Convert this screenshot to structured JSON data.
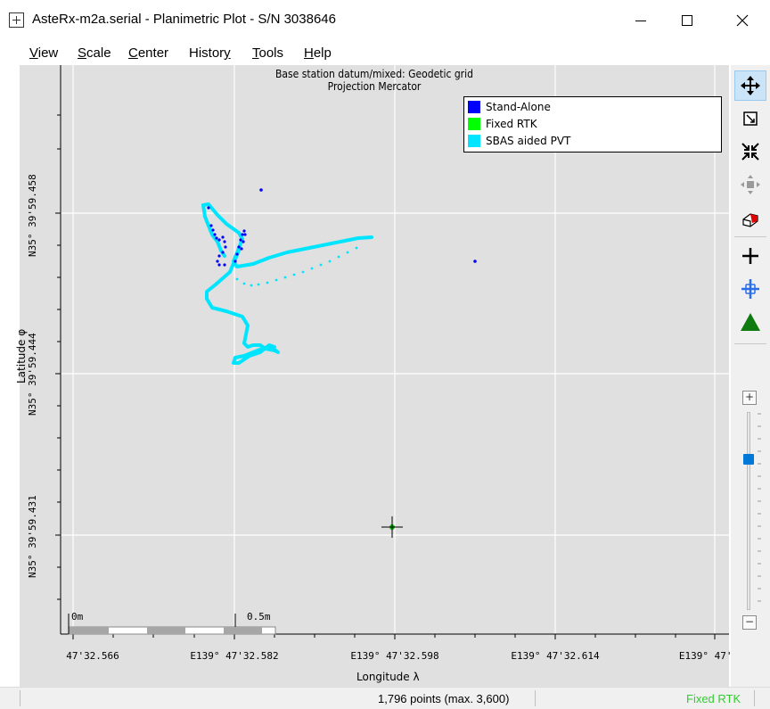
{
  "window": {
    "title": "AsteRx-m2a.serial - Planimetric Plot - S/N 3038646",
    "minimize_glyph": "—",
    "maximize_glyph": "☐",
    "close_glyph": "✕"
  },
  "menu": {
    "items": [
      {
        "label": "View",
        "accel": "V"
      },
      {
        "label": "Scale",
        "accel": "S"
      },
      {
        "label": "Center",
        "accel": "C"
      },
      {
        "label": "History",
        "accel": "y"
      },
      {
        "label": "Tools",
        "accel": "T"
      },
      {
        "label": "Help",
        "accel": "H"
      }
    ]
  },
  "plot": {
    "title_line1": "Base station datum/mixed: Geodetic grid",
    "title_line2": "Projection Mercator",
    "legend": [
      {
        "label": "Stand-Alone",
        "color": "#0000ff"
      },
      {
        "label": "Fixed RTK",
        "color": "#00ff00"
      },
      {
        "label": "SBAS aided PVT",
        "color": "#00e5ff"
      }
    ],
    "x_axis_label": "Longitude λ",
    "y_axis_label": "Latitude φ",
    "x_ticks": [
      "47'32.566",
      "E139° 47'32.582",
      "E139° 47'32.598",
      "E139° 47'32.614",
      "E139° 47'3"
    ],
    "y_ticks": [
      "N35° 39'59.458",
      "N35° 39'59.444",
      "N35° 39'59.431"
    ],
    "scalebar": {
      "start": "0m",
      "end": "0.5m"
    }
  },
  "toolbar": {
    "tools": [
      {
        "name": "pan-icon",
        "active": true
      },
      {
        "name": "zoom-window-icon",
        "active": false
      },
      {
        "name": "fit-all-icon",
        "active": false
      },
      {
        "name": "move-origin-icon",
        "active": false
      },
      {
        "name": "eraser-icon",
        "active": false
      },
      {
        "name": "crosshair-icon",
        "active": false
      },
      {
        "name": "center-marker-icon",
        "active": false
      },
      {
        "name": "triangle-marker-icon",
        "active": false
      }
    ],
    "zoom_plus": "+",
    "zoom_minus": "−",
    "zoom_level": 0.24
  },
  "status": {
    "points": "1,796 points (max. 3,600)",
    "mode": "Fixed RTK",
    "mode_color": "#33cc33"
  },
  "colors": {
    "plot_bg": "#e0e0e0",
    "grid": "#ffffff",
    "stand_alone": "#0000ff",
    "fixed_rtk": "#00ff00",
    "sbas": "#00e5ff"
  }
}
